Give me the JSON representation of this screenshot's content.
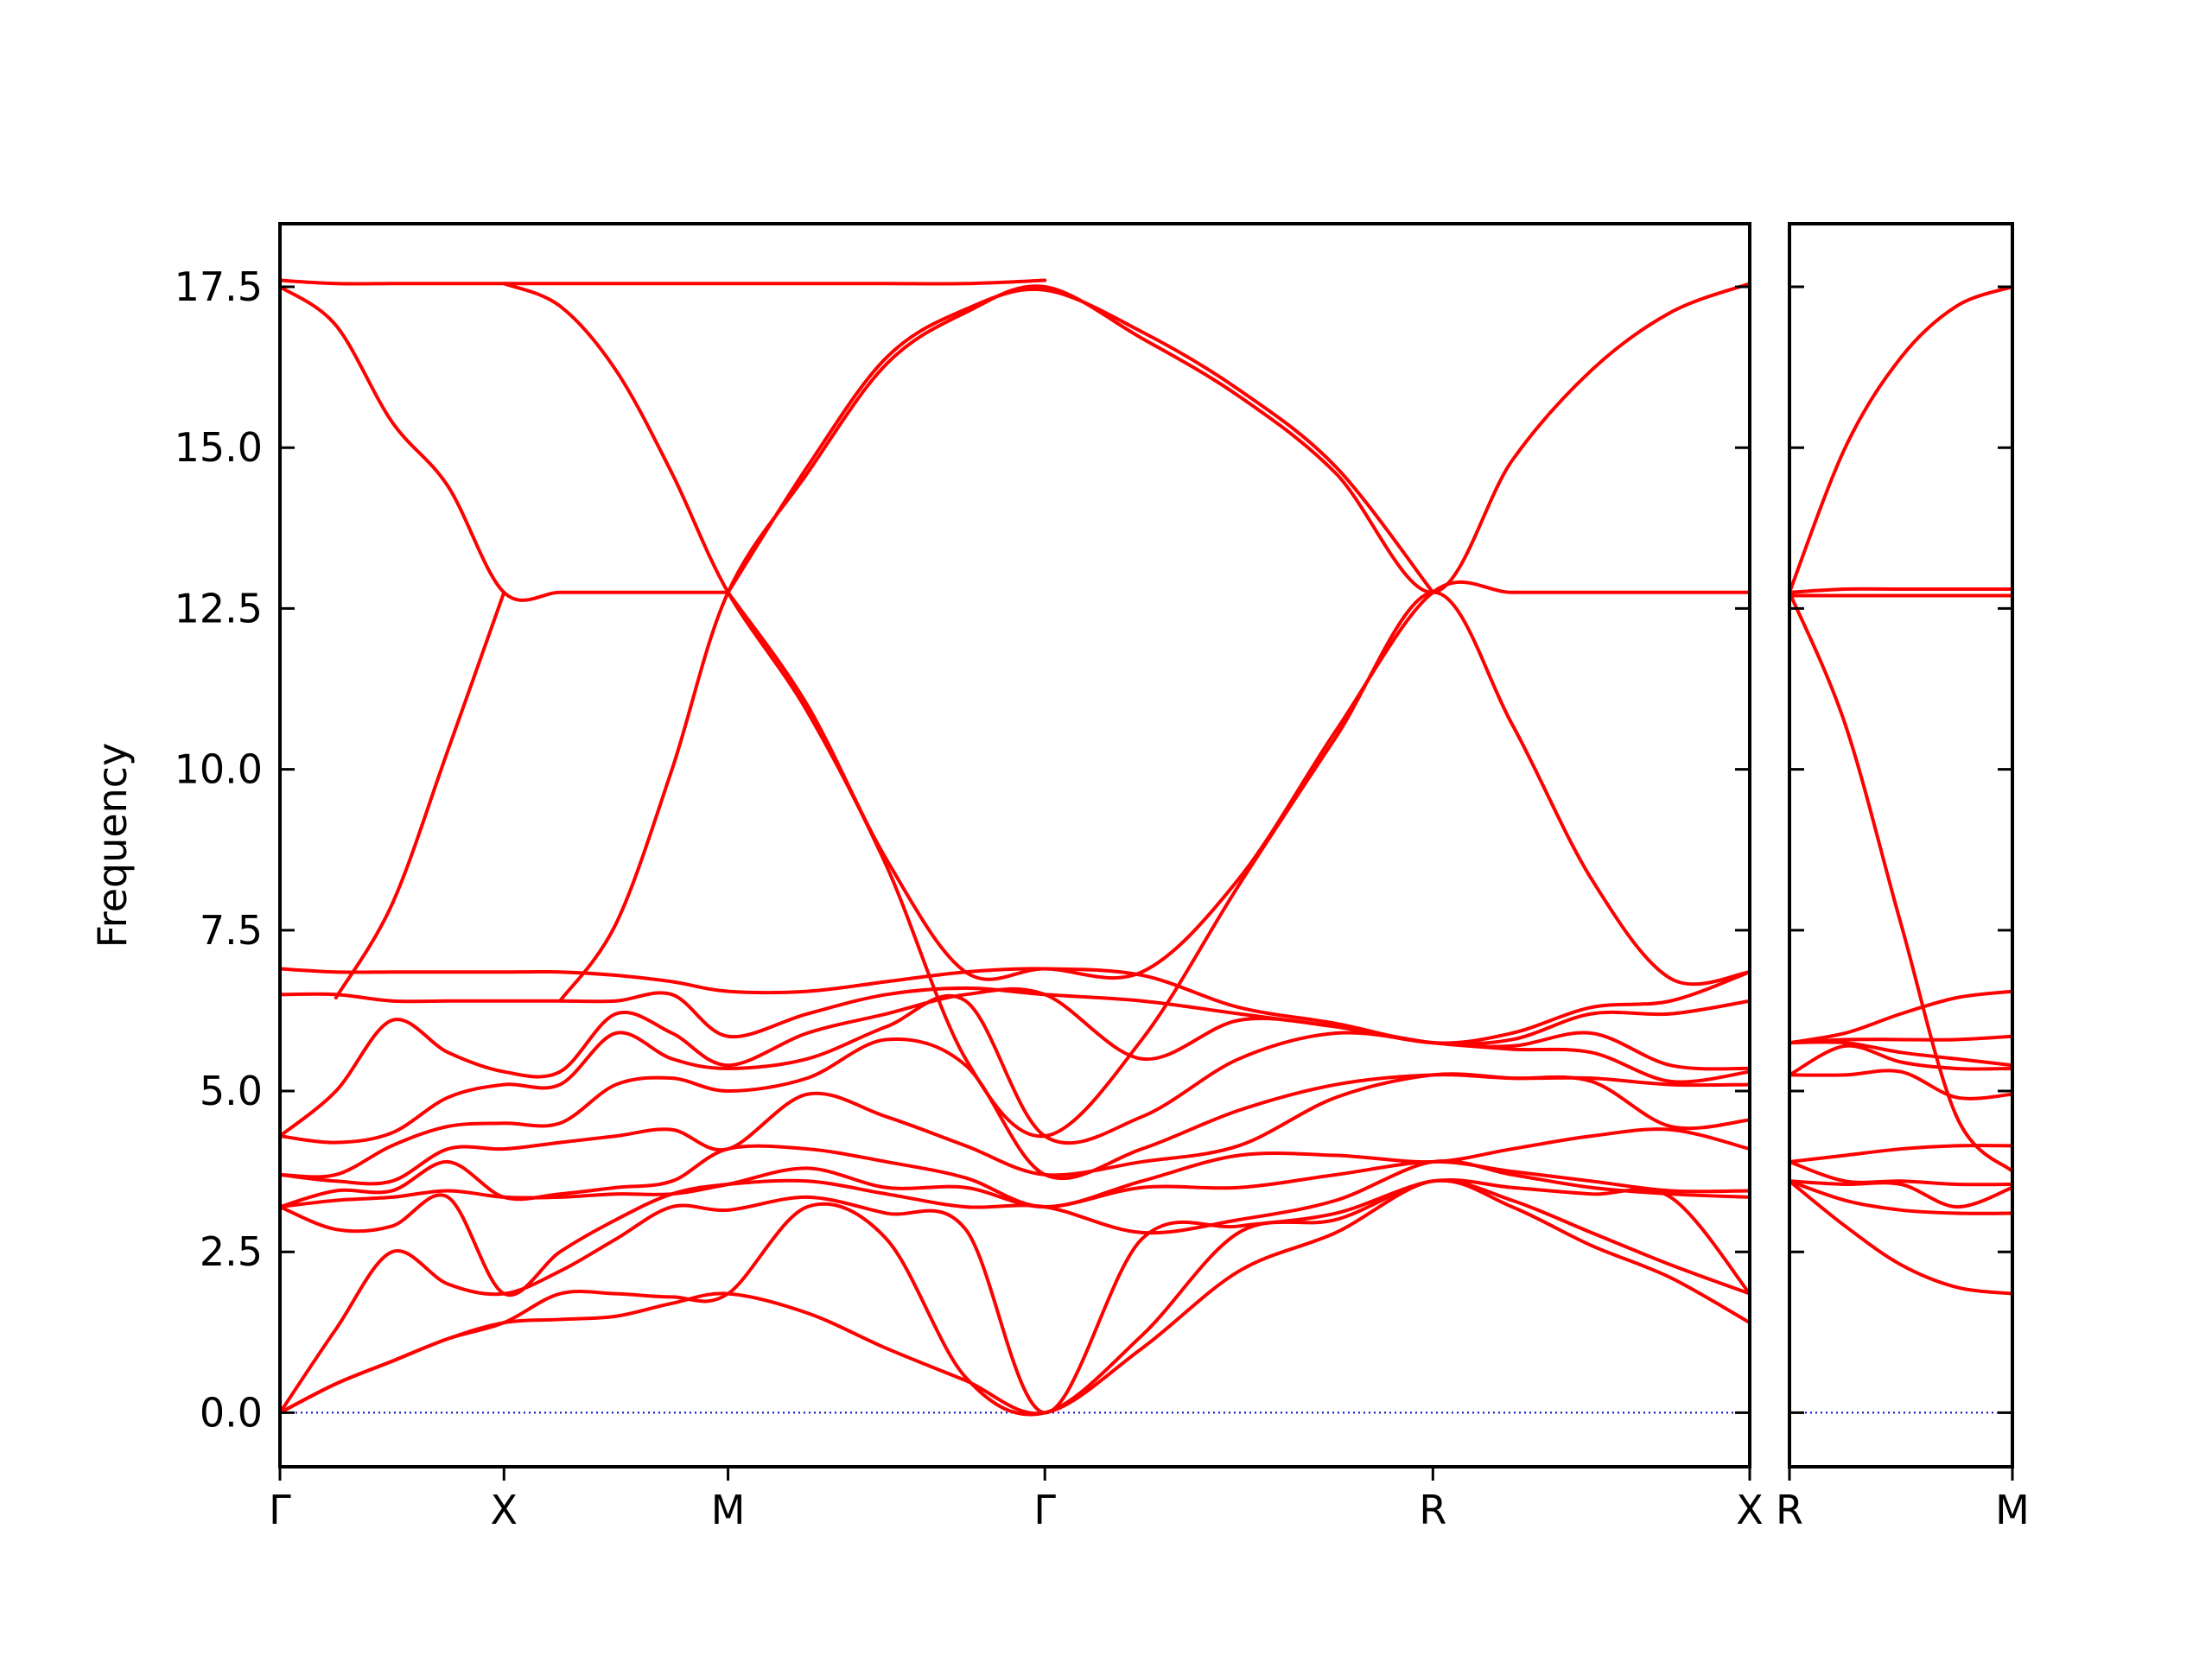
{
  "chart_data": [
    {
      "type": "line",
      "ylabel": "Frequency",
      "color": "#ff0000",
      "hline": 0,
      "hline_color": "#0000cc",
      "x": [
        0,
        0.125,
        0.25,
        0.375,
        0.5,
        0.625,
        0.75,
        0.875,
        1.0,
        1.1768,
        1.3536,
        1.5303,
        1.7071,
        1.9236,
        2.1401,
        2.3566,
        2.5731,
        2.7499,
        2.9266,
        3.1034,
        3.2802
      ],
      "xlim": [
        0,
        3.2802
      ],
      "ylim": [
        -0.84,
        18.48
      ],
      "xticks": [
        {
          "value": 0,
          "label": "Γ"
        },
        {
          "value": 0.5,
          "label": "X"
        },
        {
          "value": 1.0,
          "label": "M"
        },
        {
          "value": 1.7071,
          "label": "Γ"
        },
        {
          "value": 2.5731,
          "label": "R"
        },
        {
          "value": 3.2802,
          "label": "X"
        }
      ],
      "yticks": [
        {
          "value": 0,
          "label": "0.0"
        },
        2.5,
        {
          "value": 5,
          "label": "5.0"
        },
        7.5,
        {
          "value": 10,
          "label": "10.0"
        },
        12.5,
        {
          "value": 15,
          "label": "15.0"
        },
        17.5
      ],
      "series": [
        {
          "values": [
            0,
            0.45,
            0.8,
            1.15,
            1.4,
            1.45,
            1.5,
            1.7,
            1.85,
            1.55,
            1.0,
            0.5,
            0,
            1.0,
            2.2,
            2.8,
            3.6,
            3.2,
            2.6,
            2.1,
            1.4
          ]
        },
        {
          "values": [
            0,
            0.45,
            0.8,
            1.15,
            1.4,
            1.85,
            1.85,
            1.8,
            1.85,
            3.2,
            2.7,
            0.55,
            0,
            1.2,
            2.8,
            3.0,
            3.6,
            3.3,
            2.8,
            2.3,
            1.85
          ]
        },
        {
          "values": [
            0,
            1.3,
            2.5,
            2.0,
            1.85,
            2.2,
            2.7,
            3.2,
            3.15,
            3.35,
            3.1,
            2.85,
            0,
            2.7,
            2.9,
            3.1,
            3.6,
            3.5,
            3.4,
            3.35,
            1.85
          ]
        },
        {
          "values": [
            3.2,
            2.85,
            2.9,
            3.35,
            1.85,
            2.5,
            3.0,
            3.4,
            3.55,
            3.6,
            3.4,
            3.2,
            3.2,
            2.8,
            3.0,
            3.3,
            3.9,
            3.7,
            3.5,
            3.4,
            3.35
          ]
        },
        {
          "values": [
            3.2,
            3.3,
            3.35,
            3.45,
            3.35,
            3.35,
            3.4,
            3.4,
            3.55,
            3.8,
            3.5,
            3.5,
            3.2,
            3.5,
            3.5,
            3.7,
            3.9,
            3.75,
            3.6,
            3.45,
            3.45
          ]
        },
        {
          "values": [
            3.2,
            3.45,
            3.45,
            3.9,
            3.35,
            3.4,
            3.5,
            3.6,
            4.1,
            4.1,
            3.9,
            3.65,
            3.2,
            3.6,
            4.0,
            4.0,
            3.9,
            4.1,
            4.3,
            4.4,
            4.1
          ]
        },
        {
          "values": [
            3.7,
            3.6,
            3.6,
            4.1,
            4.1,
            4.2,
            4.3,
            4.4,
            4.1,
            4.95,
            4.6,
            4.15,
            3.7,
            3.9,
            4.15,
            4.9,
            5.25,
            5.2,
            5.15,
            4.45,
            4.55
          ]
        },
        {
          "values": [
            3.7,
            3.7,
            4.15,
            4.45,
            4.5,
            4.5,
            5.1,
            5.2,
            5.0,
            5.2,
            5.8,
            5.4,
            3.7,
            4.1,
            4.7,
            5.1,
            5.25,
            5.2,
            5.2,
            5.1,
            5.1
          ]
        },
        {
          "values": [
            4.3,
            4.2,
            4.35,
            4.9,
            5.1,
            5.1,
            5.9,
            5.5,
            5.35,
            5.5,
            6.0,
            6.4,
            4.3,
            4.6,
            5.5,
            5.9,
            5.75,
            5.65,
            5.6,
            5.15,
            5.3
          ]
        },
        {
          "values": [
            4.3,
            5.0,
            6.1,
            5.6,
            5.3,
            5.3,
            6.2,
            5.9,
            5.4,
            5.9,
            6.2,
            6.5,
            6.5,
            5.5,
            6.1,
            6.0,
            5.75,
            5.7,
            5.9,
            5.4,
            5.35
          ]
        },
        {
          "values": [
            6.5,
            6.5,
            6.4,
            6.4,
            6.4,
            6.4,
            6.4,
            6.5,
            5.85,
            6.2,
            6.5,
            6.6,
            6.5,
            6.4,
            6.2,
            6.0,
            5.75,
            5.8,
            6.2,
            6.2,
            6.4
          ]
        },
        {
          "values": [
            6.9,
            6.85,
            6.85,
            6.85,
            6.85,
            6.85,
            6.8,
            6.7,
            6.55,
            6.55,
            6.7,
            6.85,
            6.9,
            6.8,
            6.3,
            6.05,
            5.75,
            5.9,
            6.3,
            6.4,
            6.85
          ]
        },
        {
          "values": [
            17.6,
            17.55,
            17.55,
            17.55,
            17.55,
            17.55,
            17.55,
            17.55,
            17.55,
            17.55,
            17.55,
            17.55,
            17.6,
            null,
            null,
            null,
            null,
            null,
            null,
            null,
            null
          ]
        },
        {
          "values": [
            17.5,
            16.9,
            15.4,
            14.4,
            12.75,
            12.75,
            12.75,
            12.75,
            12.75,
            null,
            null,
            null,
            null,
            null,
            null,
            null,
            null,
            null,
            null,
            null,
            null
          ]
        },
        {
          "values": [
            null,
            6.45,
            7.9,
            10.3,
            12.75,
            null,
            null,
            null,
            null,
            null,
            null,
            null,
            null,
            null,
            null,
            null,
            null,
            null,
            null,
            null,
            null
          ]
        },
        {
          "values": [
            null,
            null,
            null,
            null,
            17.55,
            17.2,
            16.2,
            14.6,
            12.75,
            10.9,
            8.5,
            5.5,
            4.3,
            5.8,
            8.2,
            10.5,
            12.75,
            10.7,
            8.3,
            6.75,
            6.85
          ]
        },
        {
          "values": [
            null,
            null,
            null,
            null,
            null,
            6.4,
            7.6,
            10.0,
            12.75,
            14.6,
            16.3,
            17.1,
            17.5,
            16.7,
            15.8,
            14.6,
            12.75,
            14.8,
            16.2,
            17.1,
            17.55
          ]
        },
        {
          "values": [
            null,
            null,
            null,
            null,
            null,
            null,
            null,
            null,
            12.75,
            11.0,
            8.6,
            6.85,
            6.9,
            6.85,
            8.3,
            10.6,
            12.75,
            12.75,
            12.75,
            12.75,
            12.75
          ]
        },
        {
          "values": [
            null,
            null,
            null,
            null,
            null,
            null,
            null,
            null,
            12.75,
            14.7,
            16.4,
            17.15,
            17.45,
            16.8,
            15.9,
            14.7,
            12.75,
            null,
            null,
            null,
            null
          ]
        }
      ]
    },
    {
      "type": "line",
      "color": "#ff0000",
      "hline": 0,
      "hline_color": "#0000cc",
      "x": [
        3.2802,
        3.4052,
        3.5302,
        3.6552,
        3.7802
      ],
      "xlim": [
        3.2802,
        3.7802
      ],
      "ylim": [
        -0.84,
        18.48
      ],
      "xticks": [
        {
          "value": 3.2802,
          "label": "R"
        },
        {
          "value": 3.7802,
          "label": "M"
        }
      ],
      "yticks": [
        0,
        2.5,
        5,
        7.5,
        10,
        12.5,
        15,
        17.5
      ],
      "ytick_labels": false,
      "series": [
        {
          "values": [
            3.6,
            2.9,
            2.3,
            1.95,
            1.85
          ]
        },
        {
          "values": [
            3.6,
            3.3,
            3.15,
            3.1,
            3.1
          ]
        },
        {
          "values": [
            3.6,
            3.55,
            3.55,
            3.2,
            3.5
          ]
        },
        {
          "values": [
            3.9,
            3.6,
            3.6,
            3.55,
            3.55
          ]
        },
        {
          "values": [
            3.9,
            4.0,
            4.1,
            4.15,
            4.15
          ]
        },
        {
          "values": [
            5.25,
            5.25,
            5.3,
            4.9,
            4.95
          ]
        },
        {
          "values": [
            5.25,
            5.7,
            5.45,
            5.35,
            5.35
          ]
        },
        {
          "values": [
            5.75,
            5.75,
            5.6,
            5.5,
            5.4
          ]
        },
        {
          "values": [
            5.75,
            5.8,
            5.8,
            5.8,
            5.85
          ]
        },
        {
          "values": [
            5.75,
            5.9,
            6.2,
            6.45,
            6.55
          ]
        },
        {
          "values": [
            12.7,
            12.7,
            12.7,
            12.7,
            12.7
          ]
        },
        {
          "values": [
            12.75,
            12.8,
            12.8,
            12.8,
            12.8
          ]
        },
        {
          "values": [
            12.75,
            10.7,
            7.6,
            4.6,
            3.75
          ]
        },
        {
          "values": [
            12.75,
            15.0,
            16.4,
            17.2,
            17.5
          ]
        }
      ]
    }
  ]
}
